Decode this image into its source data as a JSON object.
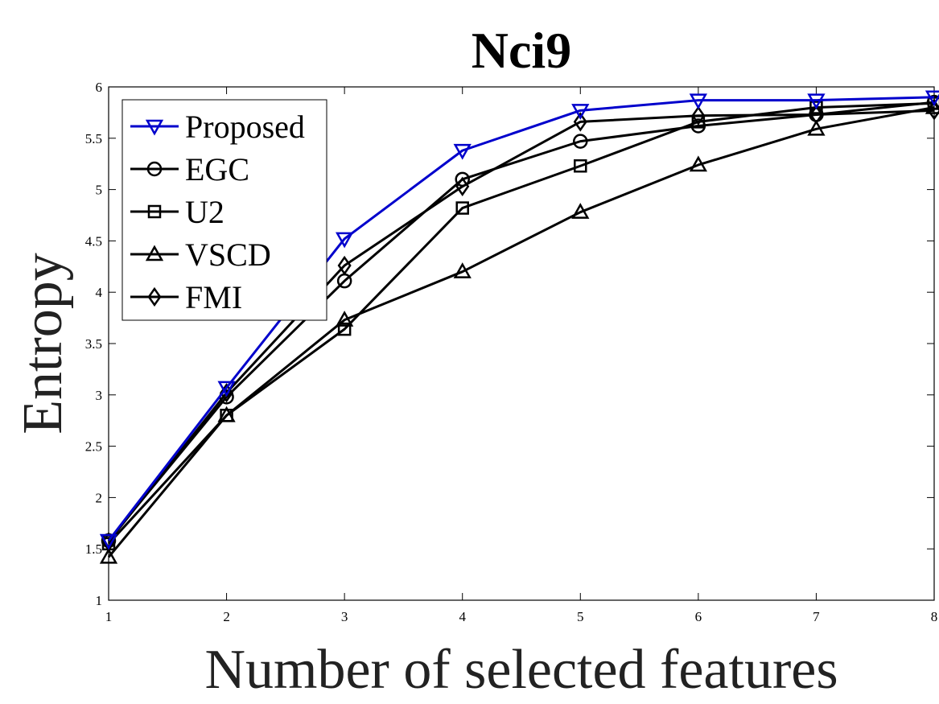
{
  "chart_data": {
    "type": "line",
    "title": "Nci9",
    "xlabel": "Number of selected features",
    "ylabel": "Entropy",
    "x": [
      1,
      2,
      3,
      4,
      5,
      6,
      7,
      8
    ],
    "xlim": [
      1,
      8
    ],
    "ylim": [
      1,
      6
    ],
    "xticks": [
      "1",
      "2",
      "3",
      "4",
      "5",
      "6",
      "7",
      "8"
    ],
    "yticks": [
      "1",
      "1.5",
      "2",
      "2.5",
      "3",
      "3.5",
      "4",
      "4.5",
      "5",
      "5.5",
      "6"
    ],
    "grid": false,
    "legend_position": "top-left",
    "series": [
      {
        "name": "Proposed",
        "color": "#0000cc",
        "marker": "triangle-down",
        "values": [
          1.58,
          3.07,
          4.52,
          5.38,
          5.77,
          5.87,
          5.87,
          5.9
        ]
      },
      {
        "name": "EGC",
        "color": "#000000",
        "marker": "circle",
        "values": [
          1.58,
          2.98,
          4.11,
          5.1,
          5.47,
          5.62,
          5.73,
          5.85
        ]
      },
      {
        "name": "U2",
        "color": "#000000",
        "marker": "square",
        "values": [
          1.55,
          2.8,
          3.64,
          4.82,
          5.23,
          5.66,
          5.8,
          5.84
        ]
      },
      {
        "name": "VSCD",
        "color": "#000000",
        "marker": "triangle-up",
        "values": [
          1.42,
          2.8,
          3.73,
          4.2,
          4.78,
          5.24,
          5.59,
          5.8
        ]
      },
      {
        "name": "FMI",
        "color": "#000000",
        "marker": "diamond",
        "values": [
          1.57,
          3.02,
          4.26,
          5.03,
          5.66,
          5.72,
          5.73,
          5.77
        ]
      }
    ]
  }
}
